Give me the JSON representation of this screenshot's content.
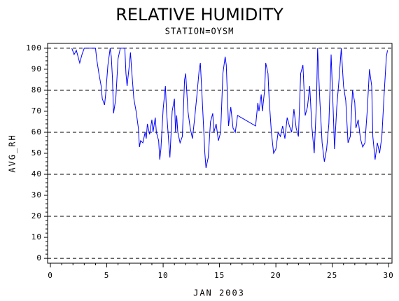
{
  "chart_data": {
    "type": "line",
    "title": "RELATIVE HUMIDITY",
    "subtitle": "STATION=OYSM",
    "xlabel": "JAN 2003",
    "ylabel": "AVG_RH",
    "xlim": [
      -0.25,
      30.3
    ],
    "ylim": [
      -2.3,
      102.3
    ],
    "xticks": [
      0,
      5,
      10,
      15,
      20,
      25,
      30
    ],
    "yticks": [
      0,
      10,
      20,
      30,
      40,
      50,
      60,
      70,
      80,
      90,
      100
    ],
    "ygrid": [
      0,
      20,
      40,
      60,
      80,
      100
    ],
    "grid_style": "dashed",
    "series": [
      {
        "name": "AVG_RH",
        "color": "#0000ff",
        "x": [
          1.9,
          2.1,
          2.3,
          2.5,
          2.6,
          2.8,
          3.0,
          4.0,
          4.1,
          4.3,
          4.5,
          4.6,
          4.8,
          4.9,
          5.0,
          5.1,
          5.3,
          5.4,
          5.5,
          5.6,
          5.8,
          6.0,
          6.2,
          6.6,
          6.7,
          6.8,
          7.0,
          7.1,
          7.2,
          7.4,
          7.6,
          7.8,
          7.9,
          8.0,
          8.2,
          8.4,
          8.5,
          8.6,
          8.8,
          9.0,
          9.1,
          9.3,
          9.4,
          9.6,
          9.7,
          9.8,
          10.0,
          10.2,
          10.3,
          10.5,
          10.6,
          10.8,
          11.0,
          11.1,
          11.2,
          11.3,
          11.5,
          11.7,
          11.9,
          12.0,
          12.2,
          12.4,
          12.6,
          12.8,
          13.0,
          13.2,
          13.3,
          13.5,
          13.7,
          13.8,
          14.0,
          14.2,
          14.4,
          14.5,
          14.7,
          14.9,
          15.1,
          15.3,
          15.5,
          15.6,
          15.8,
          16.0,
          16.2,
          16.4,
          16.6,
          18.2,
          18.4,
          18.5,
          18.7,
          18.8,
          19.0,
          19.1,
          19.3,
          19.4,
          19.6,
          19.8,
          20.0,
          20.2,
          20.4,
          20.6,
          20.8,
          21.0,
          21.2,
          21.4,
          21.6,
          21.8,
          22.0,
          22.2,
          22.4,
          22.6,
          22.8,
          23.0,
          23.2,
          23.4,
          23.6,
          23.7,
          23.9,
          24.1,
          24.3,
          24.5,
          24.7,
          24.9,
          25.1,
          25.2,
          25.4,
          25.6,
          25.8,
          26.0,
          26.2,
          26.4,
          26.6,
          26.8,
          27.0,
          27.1,
          27.3,
          27.5,
          27.7,
          27.9,
          28.1,
          28.3,
          28.5,
          28.6,
          28.8,
          29.0,
          29.2,
          29.4,
          29.6,
          29.8,
          29.9
        ],
        "values": [
          100,
          97,
          99,
          95,
          93,
          97,
          100,
          100,
          95,
          88,
          82,
          76,
          73,
          78,
          85,
          92,
          100,
          96,
          86,
          69,
          76,
          95,
          100,
          100,
          88,
          82,
          92,
          98,
          90,
          76,
          70,
          62,
          53,
          56,
          55,
          60,
          57,
          64,
          59,
          66,
          60,
          67,
          60,
          56,
          47,
          52,
          71,
          82,
          70,
          55,
          48,
          70,
          76,
          60,
          68,
          60,
          55,
          58,
          85,
          88,
          70,
          62,
          57,
          67,
          78,
          90,
          93,
          72,
          50,
          43,
          48,
          65,
          69,
          60,
          64,
          56,
          60,
          88,
          96,
          92,
          63,
          72,
          62,
          60,
          68,
          63,
          74,
          70,
          78,
          70,
          80,
          93,
          88,
          76,
          60,
          50,
          52,
          60,
          58,
          63,
          57,
          67,
          63,
          60,
          71,
          62,
          58,
          88,
          92,
          68,
          72,
          82,
          62,
          50,
          74,
          100,
          75,
          55,
          46,
          52,
          64,
          97,
          68,
          52,
          72,
          85,
          100,
          82,
          75,
          55,
          58,
          80,
          74,
          62,
          66,
          57,
          53,
          55,
          70,
          90,
          82,
          58,
          47,
          55,
          50,
          58,
          78,
          96,
          99
        ]
      }
    ]
  }
}
